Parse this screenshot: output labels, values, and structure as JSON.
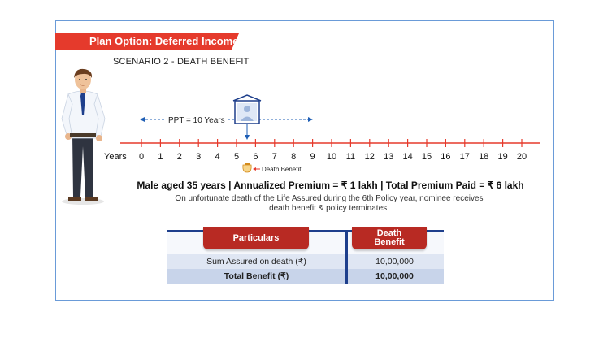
{
  "banner": "Plan Option: Deferred Income",
  "scenario": "SCENARIO 2 - DEATH BENEFIT",
  "timeline": {
    "years_label": "Years",
    "ticks": [
      "0",
      "1",
      "2",
      "3",
      "4",
      "5",
      "6",
      "7",
      "8",
      "9",
      "10",
      "11",
      "12",
      "13",
      "14",
      "15",
      "16",
      "17",
      "18",
      "19",
      "20"
    ],
    "ppt_label": "PPT = 10 Years",
    "death_label": "Death Benefit"
  },
  "headline": "Male aged 35 years | Annualized Premium = ₹ 1 lakh | Total Premium Paid = ₹ 6 lakh",
  "subtext_line1": "On unfortunate death of the Life Assured during the 6th Policy year, nominee receives",
  "subtext_line2": "death benefit & policy terminates.",
  "table": {
    "col1": "Particulars",
    "col2_line1": "Death",
    "col2_line2": "Benefit",
    "rows": [
      {
        "particular": "Sum Assured on death (₹)",
        "value": "10,00,000"
      },
      {
        "particular": "Total Benefit (₹)",
        "value": "10,00,000"
      }
    ]
  },
  "colors": {
    "accent_red": "#e53a2c",
    "line_red": "#e53a2c",
    "navy": "#1e3f8c",
    "blue_arrow": "#1f5fb5"
  }
}
